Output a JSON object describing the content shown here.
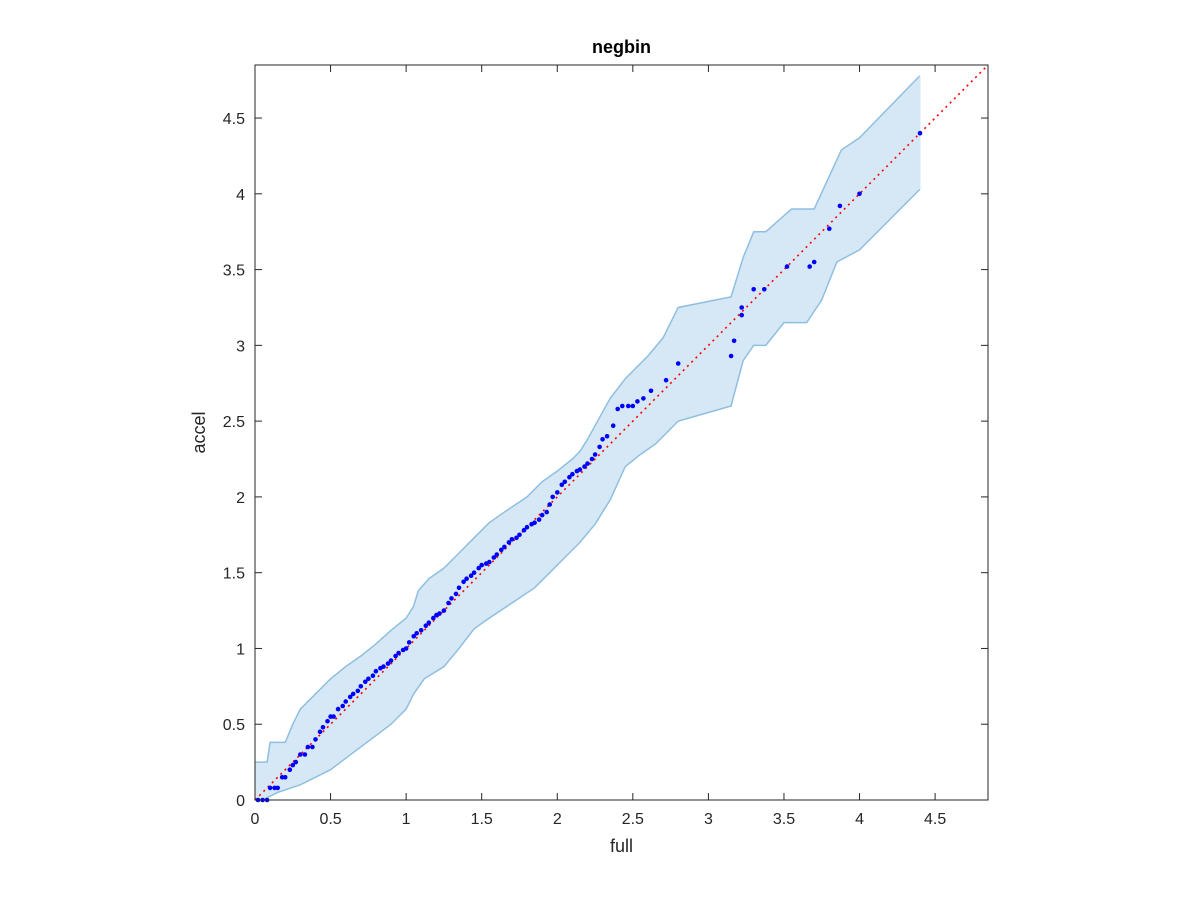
{
  "chart_data": {
    "type": "scatter",
    "title": "negbin",
    "xlabel": "full",
    "ylabel": "accel",
    "xlim": [
      0,
      4.85
    ],
    "ylim": [
      0,
      4.85
    ],
    "xticks": [
      "0",
      "0.5",
      "1",
      "1.5",
      "2",
      "2.5",
      "3",
      "3.5",
      "4",
      "4.5"
    ],
    "yticks": [
      "0",
      "0.5",
      "1",
      "1.5",
      "2",
      "2.5",
      "3",
      "3.5",
      "4",
      "4.5"
    ],
    "grid": false,
    "colors": {
      "band_fill": "#d6e7f5",
      "band_edge": "#8fbfe0",
      "points": "#0000ff",
      "reference_line": "#ff0000",
      "axes": "#262626"
    },
    "reference_line": {
      "style": "dotted",
      "from": [
        0,
        0
      ],
      "to": [
        4.85,
        4.85
      ]
    },
    "band": {
      "upper": [
        [
          0,
          0.25
        ],
        [
          0.08,
          0.25
        ],
        [
          0.1,
          0.38
        ],
        [
          0.2,
          0.38
        ],
        [
          0.25,
          0.5
        ],
        [
          0.3,
          0.6
        ],
        [
          0.4,
          0.7
        ],
        [
          0.5,
          0.8
        ],
        [
          0.6,
          0.88
        ],
        [
          0.7,
          0.95
        ],
        [
          0.8,
          1.03
        ],
        [
          0.9,
          1.12
        ],
        [
          1.0,
          1.2
        ],
        [
          1.05,
          1.28
        ],
        [
          1.08,
          1.38
        ],
        [
          1.15,
          1.46
        ],
        [
          1.25,
          1.53
        ],
        [
          1.35,
          1.63
        ],
        [
          1.45,
          1.73
        ],
        [
          1.55,
          1.83
        ],
        [
          1.65,
          1.9
        ],
        [
          1.8,
          2.0
        ],
        [
          1.9,
          2.1
        ],
        [
          2.0,
          2.17
        ],
        [
          2.1,
          2.25
        ],
        [
          2.15,
          2.3
        ],
        [
          2.2,
          2.38
        ],
        [
          2.25,
          2.47
        ],
        [
          2.35,
          2.65
        ],
        [
          2.45,
          2.78
        ],
        [
          2.6,
          2.93
        ],
        [
          2.7,
          3.05
        ],
        [
          2.8,
          3.25
        ],
        [
          3.15,
          3.32
        ],
        [
          3.23,
          3.58
        ],
        [
          3.3,
          3.75
        ],
        [
          3.38,
          3.75
        ],
        [
          3.55,
          3.9
        ],
        [
          3.7,
          3.9
        ],
        [
          3.88,
          4.29
        ],
        [
          4.0,
          4.37
        ],
        [
          4.4,
          4.78
        ]
      ],
      "lower": [
        [
          0.05,
          0
        ],
        [
          0.15,
          0.05
        ],
        [
          0.3,
          0.1
        ],
        [
          0.5,
          0.2
        ],
        [
          0.7,
          0.35
        ],
        [
          0.9,
          0.5
        ],
        [
          1.0,
          0.6
        ],
        [
          1.05,
          0.7
        ],
        [
          1.12,
          0.8
        ],
        [
          1.25,
          0.88
        ],
        [
          1.35,
          1.0
        ],
        [
          1.45,
          1.13
        ],
        [
          1.55,
          1.2
        ],
        [
          1.7,
          1.3
        ],
        [
          1.85,
          1.4
        ],
        [
          1.95,
          1.5
        ],
        [
          2.05,
          1.6
        ],
        [
          2.15,
          1.7
        ],
        [
          2.25,
          1.82
        ],
        [
          2.35,
          1.98
        ],
        [
          2.45,
          2.2
        ],
        [
          2.55,
          2.28
        ],
        [
          2.65,
          2.35
        ],
        [
          2.8,
          2.5
        ],
        [
          3.15,
          2.6
        ],
        [
          3.23,
          2.9
        ],
        [
          3.3,
          3.0
        ],
        [
          3.38,
          3.0
        ],
        [
          3.5,
          3.15
        ],
        [
          3.65,
          3.15
        ],
        [
          3.75,
          3.3
        ],
        [
          3.85,
          3.55
        ],
        [
          4.0,
          3.63
        ],
        [
          4.4,
          4.03
        ]
      ]
    },
    "series": [
      {
        "points": [
          [
            0.02,
            0
          ],
          [
            0.05,
            0
          ],
          [
            0.08,
            0
          ],
          [
            0.1,
            0.08
          ],
          [
            0.13,
            0.08
          ],
          [
            0.15,
            0.08
          ],
          [
            0.18,
            0.15
          ],
          [
            0.2,
            0.15
          ],
          [
            0.23,
            0.2
          ],
          [
            0.25,
            0.23
          ],
          [
            0.27,
            0.25
          ],
          [
            0.3,
            0.3
          ],
          [
            0.33,
            0.3
          ],
          [
            0.35,
            0.35
          ],
          [
            0.38,
            0.35
          ],
          [
            0.4,
            0.4
          ],
          [
            0.43,
            0.45
          ],
          [
            0.45,
            0.48
          ],
          [
            0.48,
            0.52
          ],
          [
            0.5,
            0.55
          ],
          [
            0.52,
            0.55
          ],
          [
            0.55,
            0.6
          ],
          [
            0.58,
            0.62
          ],
          [
            0.6,
            0.65
          ],
          [
            0.63,
            0.68
          ],
          [
            0.65,
            0.7
          ],
          [
            0.68,
            0.72
          ],
          [
            0.7,
            0.75
          ],
          [
            0.73,
            0.78
          ],
          [
            0.75,
            0.8
          ],
          [
            0.78,
            0.82
          ],
          [
            0.8,
            0.85
          ],
          [
            0.83,
            0.87
          ],
          [
            0.85,
            0.88
          ],
          [
            0.88,
            0.9
          ],
          [
            0.9,
            0.92
          ],
          [
            0.93,
            0.95
          ],
          [
            0.95,
            0.97
          ],
          [
            0.98,
            0.99
          ],
          [
            1.0,
            1.0
          ],
          [
            1.02,
            1.04
          ],
          [
            1.05,
            1.08
          ],
          [
            1.07,
            1.1
          ],
          [
            1.1,
            1.12
          ],
          [
            1.13,
            1.15
          ],
          [
            1.15,
            1.17
          ],
          [
            1.18,
            1.2
          ],
          [
            1.2,
            1.22
          ],
          [
            1.22,
            1.23
          ],
          [
            1.25,
            1.25
          ],
          [
            1.28,
            1.3
          ],
          [
            1.3,
            1.33
          ],
          [
            1.33,
            1.36
          ],
          [
            1.35,
            1.4
          ],
          [
            1.38,
            1.44
          ],
          [
            1.4,
            1.46
          ],
          [
            1.43,
            1.48
          ],
          [
            1.45,
            1.5
          ],
          [
            1.48,
            1.53
          ],
          [
            1.5,
            1.55
          ],
          [
            1.53,
            1.56
          ],
          [
            1.55,
            1.57
          ],
          [
            1.58,
            1.6
          ],
          [
            1.6,
            1.62
          ],
          [
            1.63,
            1.65
          ],
          [
            1.65,
            1.67
          ],
          [
            1.68,
            1.7
          ],
          [
            1.7,
            1.72
          ],
          [
            1.73,
            1.73
          ],
          [
            1.75,
            1.75
          ],
          [
            1.78,
            1.78
          ],
          [
            1.8,
            1.8
          ],
          [
            1.83,
            1.82
          ],
          [
            1.85,
            1.83
          ],
          [
            1.88,
            1.85
          ],
          [
            1.9,
            1.88
          ],
          [
            1.93,
            1.9
          ],
          [
            1.95,
            1.95
          ],
          [
            1.97,
            2.0
          ],
          [
            2.0,
            2.03
          ],
          [
            2.03,
            2.08
          ],
          [
            2.05,
            2.1
          ],
          [
            2.08,
            2.13
          ],
          [
            2.1,
            2.15
          ],
          [
            2.13,
            2.17
          ],
          [
            2.15,
            2.18
          ],
          [
            2.18,
            2.2
          ],
          [
            2.2,
            2.22
          ],
          [
            2.23,
            2.25
          ],
          [
            2.25,
            2.28
          ],
          [
            2.28,
            2.33
          ],
          [
            2.3,
            2.38
          ],
          [
            2.33,
            2.4
          ],
          [
            2.37,
            2.47
          ],
          [
            2.4,
            2.58
          ],
          [
            2.43,
            2.6
          ],
          [
            2.47,
            2.6
          ],
          [
            2.5,
            2.6
          ],
          [
            2.53,
            2.63
          ],
          [
            2.57,
            2.65
          ],
          [
            2.62,
            2.7
          ],
          [
            2.72,
            2.77
          ],
          [
            2.8,
            2.88
          ],
          [
            3.15,
            2.93
          ],
          [
            3.17,
            3.03
          ],
          [
            3.22,
            3.2
          ],
          [
            3.22,
            3.25
          ],
          [
            3.3,
            3.37
          ],
          [
            3.37,
            3.37
          ],
          [
            3.52,
            3.52
          ],
          [
            3.67,
            3.52
          ],
          [
            3.7,
            3.55
          ],
          [
            3.8,
            3.77
          ],
          [
            3.87,
            3.92
          ],
          [
            4.0,
            4.0
          ],
          [
            4.4,
            4.4
          ]
        ]
      }
    ]
  }
}
